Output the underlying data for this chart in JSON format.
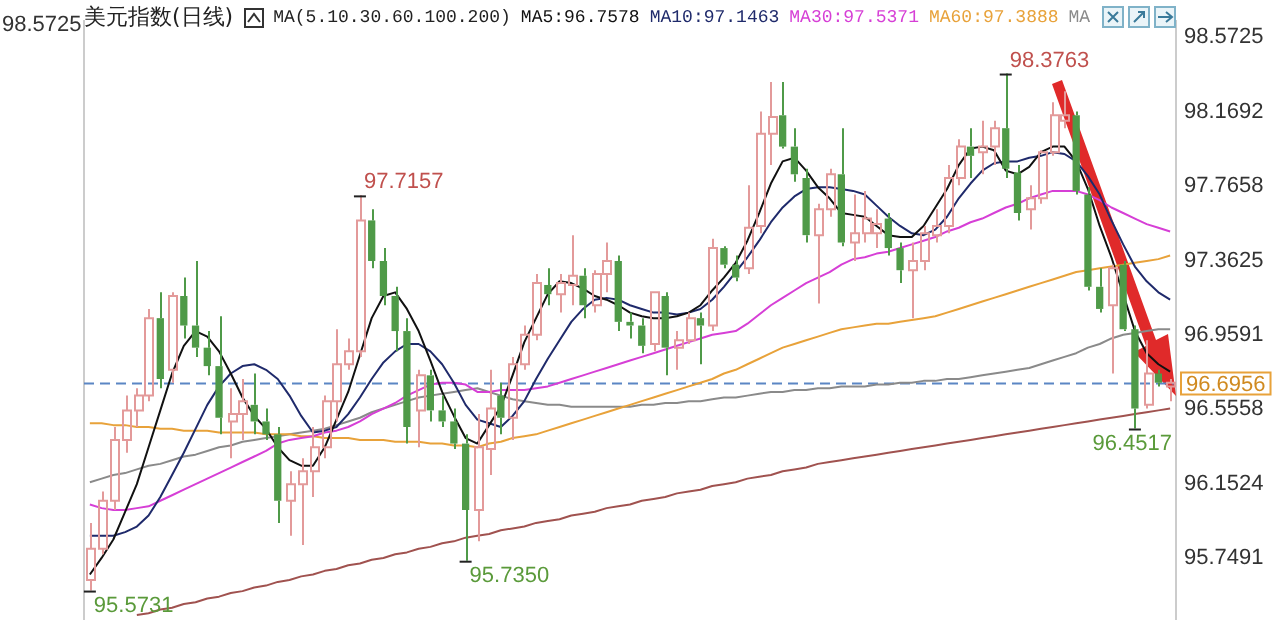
{
  "chart_data": {
    "type": "candlestick",
    "title": "美元指数(日线)",
    "subtitle": "MA(5.10.30.60.100.200)",
    "categories": [
      null,
      null,
      null,
      null,
      null,
      null,
      null,
      null,
      null,
      null,
      null,
      null,
      null,
      null,
      null,
      null,
      null,
      null,
      null,
      null,
      null,
      null,
      null,
      null,
      null,
      null,
      null,
      null,
      null,
      null,
      null,
      null,
      null,
      null,
      null,
      null,
      null,
      null,
      null,
      null,
      null,
      null,
      null,
      null,
      null,
      null,
      null,
      null,
      null,
      null,
      null,
      null,
      null,
      null,
      null,
      null,
      null,
      null,
      null,
      null,
      null,
      null,
      null,
      null,
      null,
      null,
      null,
      null,
      null,
      null,
      null,
      null,
      null,
      null,
      null,
      null,
      null,
      null,
      null,
      null,
      null,
      null,
      null,
      null,
      null,
      null,
      null,
      null,
      null,
      null,
      null,
      null,
      null
    ],
    "ohlc": [
      [
        95.63,
        95.94,
        95.5731,
        95.8
      ],
      [
        95.8,
        96.11,
        95.77,
        96.06
      ],
      [
        96.06,
        96.46,
        96.01,
        96.39
      ],
      [
        96.39,
        96.63,
        96.32,
        96.55
      ],
      [
        96.55,
        96.67,
        96.46,
        96.63
      ],
      [
        96.63,
        97.1,
        96.6,
        97.05
      ],
      [
        97.05,
        97.19,
        96.67,
        96.72
      ],
      [
        96.77,
        97.19,
        96.7,
        97.17
      ],
      [
        97.17,
        97.27,
        96.94,
        97.01
      ],
      [
        97.01,
        97.36,
        96.84,
        96.89
      ],
      [
        96.89,
        96.98,
        96.74,
        96.79
      ],
      [
        96.79,
        97.06,
        96.42,
        96.51
      ],
      [
        96.49,
        96.67,
        96.29,
        96.53
      ],
      [
        96.53,
        96.72,
        96.39,
        96.6
      ],
      [
        96.58,
        96.75,
        96.42,
        96.49
      ],
      [
        96.49,
        96.56,
        96.39,
        96.42
      ],
      [
        96.42,
        96.46,
        95.94,
        96.06
      ],
      [
        96.06,
        96.22,
        95.87,
        96.15
      ],
      [
        96.15,
        96.29,
        95.82,
        96.22
      ],
      [
        96.22,
        96.46,
        96.08,
        96.35
      ],
      [
        96.35,
        96.63,
        96.29,
        96.6
      ],
      [
        96.6,
        96.99,
        96.49,
        96.8
      ],
      [
        96.8,
        96.94,
        96.77,
        96.87
      ],
      [
        96.87,
        97.7157,
        96.84,
        97.58
      ],
      [
        97.58,
        97.64,
        97.32,
        97.36
      ],
      [
        97.36,
        97.43,
        97.12,
        97.17
      ],
      [
        97.17,
        97.22,
        96.87,
        96.98
      ],
      [
        96.98,
        97.05,
        96.37,
        96.46
      ],
      [
        96.55,
        96.77,
        96.35,
        96.74
      ],
      [
        96.74,
        96.77,
        96.49,
        96.55
      ],
      [
        96.55,
        96.63,
        96.46,
        96.49
      ],
      [
        96.49,
        96.56,
        96.34,
        96.37
      ],
      [
        96.37,
        96.42,
        95.735,
        96.01
      ],
      [
        96.01,
        96.53,
        95.84,
        96.35
      ],
      [
        96.34,
        96.77,
        96.2,
        96.56
      ],
      [
        96.63,
        96.7,
        96.42,
        96.51
      ],
      [
        96.51,
        96.84,
        96.39,
        96.8
      ],
      [
        96.8,
        97.01,
        96.77,
        96.96
      ],
      [
        96.96,
        97.29,
        96.93,
        97.24
      ],
      [
        97.23,
        97.32,
        97.12,
        97.18
      ],
      [
        97.18,
        97.29,
        97.08,
        97.24
      ],
      [
        97.23,
        97.5,
        97.12,
        97.28
      ],
      [
        97.28,
        97.32,
        97.05,
        97.12
      ],
      [
        97.12,
        97.31,
        97.08,
        97.29
      ],
      [
        97.29,
        97.46,
        97.19,
        97.36
      ],
      [
        97.36,
        97.39,
        96.98,
        97.03
      ],
      [
        97.03,
        97.08,
        96.94,
        97.01
      ],
      [
        97.01,
        97.05,
        96.86,
        96.9
      ],
      [
        96.91,
        97.19,
        96.87,
        97.19
      ],
      [
        97.17,
        97.19,
        96.74,
        96.89
      ],
      [
        96.89,
        96.98,
        96.77,
        96.93
      ],
      [
        96.93,
        97.08,
        96.91,
        97.05
      ],
      [
        97.05,
        97.08,
        96.8,
        97.01
      ],
      [
        97.01,
        97.48,
        96.98,
        97.43
      ],
      [
        97.43,
        97.44,
        97.32,
        97.34
      ],
      [
        97.34,
        97.39,
        97.25,
        97.27
      ],
      [
        97.32,
        97.77,
        97.29,
        97.54
      ],
      [
        97.55,
        98.17,
        97.51,
        98.05
      ],
      [
        98.05,
        98.33,
        97.88,
        98.14
      ],
      [
        98.15,
        98.33,
        97.97,
        97.98
      ],
      [
        97.98,
        98.08,
        97.79,
        97.83
      ],
      [
        97.81,
        97.86,
        97.46,
        97.5
      ],
      [
        97.5,
        97.67,
        97.13,
        97.64
      ],
      [
        97.64,
        97.86,
        97.6,
        97.83
      ],
      [
        97.83,
        98.08,
        97.44,
        97.46
      ],
      [
        97.46,
        97.72,
        97.36,
        97.51
      ],
      [
        97.51,
        97.74,
        97.46,
        97.59
      ],
      [
        97.51,
        97.64,
        97.43,
        97.56
      ],
      [
        97.59,
        97.62,
        97.39,
        97.43
      ],
      [
        97.43,
        97.46,
        97.24,
        97.31
      ],
      [
        97.31,
        97.46,
        97.05,
        97.36
      ],
      [
        97.36,
        97.55,
        97.31,
        97.51
      ],
      [
        97.5,
        97.64,
        97.46,
        97.55
      ],
      [
        97.55,
        97.88,
        97.51,
        97.81
      ],
      [
        97.81,
        98.02,
        97.77,
        97.98
      ],
      [
        97.98,
        98.08,
        97.81,
        97.93
      ],
      [
        97.95,
        98.12,
        97.83,
        97.98
      ],
      [
        97.98,
        98.12,
        97.88,
        98.08
      ],
      [
        98.08,
        98.3763,
        97.81,
        97.86
      ],
      [
        97.84,
        97.88,
        97.58,
        97.62
      ],
      [
        97.64,
        97.77,
        97.53,
        97.7
      ],
      [
        97.7,
        97.96,
        97.67,
        97.95
      ],
      [
        97.95,
        98.22,
        97.93,
        98.15
      ],
      [
        98.12,
        98.28,
        98.08,
        98.15
      ],
      [
        98.15,
        98.17,
        97.72,
        97.74
      ],
      [
        97.72,
        97.76,
        97.2,
        97.22
      ],
      [
        97.22,
        97.32,
        97.08,
        97.1
      ],
      [
        97.12,
        97.34,
        96.75,
        97.32
      ],
      [
        97.34,
        97.36,
        96.98,
        96.99
      ],
      [
        96.99,
        97.01,
        96.4517,
        96.56
      ],
      [
        96.58,
        96.93,
        96.56,
        96.75
      ],
      [
        96.75,
        96.77,
        96.68,
        96.7
      ],
      [
        96.68,
        96.72,
        96.6,
        96.7
      ]
    ],
    "colors": [
      "#e39a9a",
      "#e39a9a",
      "#e39a9a",
      "#e39a9a",
      "#e39a9a",
      "#e39a9a",
      "#4f9a48",
      "#e39a9a",
      "#4f9a48",
      "#4f9a48",
      "#4f9a48",
      "#4f9a48",
      "#e39a9a",
      "#e39a9a",
      "#4f9a48",
      "#4f9a48",
      "#4f9a48",
      "#e39a9a",
      "#e39a9a",
      "#e39a9a",
      "#e39a9a",
      "#e39a9a",
      "#e39a9a",
      "#e39a9a",
      "#4f9a48",
      "#4f9a48",
      "#4f9a48",
      "#4f9a48",
      "#e39a9a",
      "#4f9a48",
      "#4f9a48",
      "#4f9a48",
      "#4f9a48",
      "#e39a9a",
      "#e39a9a",
      "#4f9a48",
      "#e39a9a",
      "#e39a9a",
      "#e39a9a",
      "#4f9a48",
      "#e39a9a",
      "#e39a9a",
      "#4f9a48",
      "#e39a9a",
      "#e39a9a",
      "#4f9a48",
      "#4f9a48",
      "#4f9a48",
      "#e39a9a",
      "#4f9a48",
      "#e39a9a",
      "#e39a9a",
      "#4f9a48",
      "#e39a9a",
      "#4f9a48",
      "#4f9a48",
      "#e39a9a",
      "#e39a9a",
      "#e39a9a",
      "#4f9a48",
      "#4f9a48",
      "#4f9a48",
      "#e39a9a",
      "#e39a9a",
      "#4f9a48",
      "#e39a9a",
      "#e39a9a",
      "#e39a9a",
      "#4f9a48",
      "#4f9a48",
      "#e39a9a",
      "#e39a9a",
      "#e39a9a",
      "#e39a9a",
      "#e39a9a",
      "#4f9a48",
      "#e39a9a",
      "#e39a9a",
      "#4f9a48",
      "#4f9a48",
      "#e39a9a",
      "#e39a9a",
      "#e39a9a",
      "#e39a9a",
      "#4f9a48",
      "#4f9a48",
      "#4f9a48",
      "#e39a9a",
      "#4f9a48",
      "#4f9a48",
      "#e39a9a",
      "#4f9a48",
      "#e39a9a"
    ],
    "series": [
      {
        "type": "line",
        "name": "MA5:96.7578",
        "color": "#111111",
        "values": [
          95.66,
          95.75,
          95.85,
          96.0,
          96.15,
          96.35,
          96.55,
          96.75,
          96.9,
          96.98,
          96.95,
          96.87,
          96.75,
          96.62,
          96.52,
          96.45,
          96.35,
          96.28,
          96.25,
          96.25,
          96.35,
          96.5,
          96.65,
          96.85,
          97.05,
          97.17,
          97.19,
          97.1,
          96.98,
          96.82,
          96.65,
          96.52,
          96.4,
          96.37,
          96.47,
          96.57,
          96.74,
          96.92,
          97.05,
          97.18,
          97.25,
          97.24,
          97.21,
          97.17,
          97.15,
          97.12,
          97.08,
          97.06,
          97.05,
          97.05,
          97.06,
          97.08,
          97.12,
          97.2,
          97.27,
          97.35,
          97.47,
          97.62,
          97.78,
          97.9,
          97.92,
          97.85,
          97.76,
          97.7,
          97.62,
          97.61,
          97.6,
          97.55,
          97.5,
          97.49,
          97.49,
          97.55,
          97.65,
          97.75,
          97.88,
          97.97,
          97.98,
          97.96,
          97.85,
          97.83,
          97.87,
          97.95,
          97.98,
          97.98,
          97.9,
          97.75,
          97.55,
          97.38,
          97.18,
          96.98,
          96.86,
          96.8,
          96.76
        ]
      },
      {
        "type": "line",
        "name": "MA10:97.1463",
        "color": "#1f2a6b",
        "values": [
          95.87,
          95.87,
          95.87,
          95.89,
          95.92,
          95.98,
          96.08,
          96.2,
          96.32,
          96.45,
          96.58,
          96.68,
          96.75,
          96.79,
          96.8,
          96.77,
          96.72,
          96.63,
          96.52,
          96.43,
          96.44,
          96.46,
          96.53,
          96.62,
          96.72,
          96.81,
          96.87,
          96.91,
          96.91,
          96.87,
          96.8,
          96.7,
          96.58,
          96.5,
          96.48,
          96.46,
          96.52,
          96.6,
          96.72,
          96.83,
          96.93,
          97.03,
          97.1,
          97.15,
          97.16,
          97.15,
          97.12,
          97.1,
          97.08,
          97.08,
          97.07,
          97.08,
          97.1,
          97.15,
          97.22,
          97.3,
          97.38,
          97.47,
          97.57,
          97.65,
          97.71,
          97.75,
          97.76,
          97.76,
          97.75,
          97.74,
          97.72,
          97.66,
          97.6,
          97.55,
          97.51,
          97.5,
          97.53,
          97.6,
          97.7,
          97.78,
          97.85,
          97.89,
          97.9,
          97.9,
          97.92,
          97.93,
          97.95,
          97.94,
          97.9,
          97.82,
          97.72,
          97.58,
          97.45,
          97.33,
          97.25,
          97.19,
          97.15
        ]
      },
      {
        "type": "line",
        "name": "MA30:97.5371",
        "color": "#d63fd6",
        "values": [
          96.04,
          96.02,
          96.01,
          96.01,
          96.02,
          96.03,
          96.06,
          96.09,
          96.12,
          96.15,
          96.18,
          96.21,
          96.24,
          96.27,
          96.3,
          96.33,
          96.37,
          96.39,
          96.4,
          96.41,
          96.43,
          96.44,
          96.46,
          96.49,
          96.53,
          96.56,
          96.59,
          96.63,
          96.66,
          96.69,
          96.7,
          96.7,
          96.69,
          96.65,
          96.65,
          96.66,
          96.66,
          96.66,
          96.67,
          96.68,
          96.7,
          96.72,
          96.74,
          96.76,
          96.78,
          96.8,
          96.82,
          96.84,
          96.86,
          96.88,
          96.9,
          96.92,
          96.94,
          96.96,
          96.97,
          96.98,
          97.02,
          97.07,
          97.12,
          97.16,
          97.2,
          97.24,
          97.27,
          97.3,
          97.34,
          97.37,
          97.38,
          97.4,
          97.41,
          97.43,
          97.45,
          97.47,
          97.49,
          97.52,
          97.54,
          97.57,
          97.59,
          97.62,
          97.65,
          97.67,
          97.7,
          97.72,
          97.74,
          97.74,
          97.74,
          97.72,
          97.69,
          97.65,
          97.62,
          97.59,
          97.56,
          97.54,
          97.52
        ]
      },
      {
        "type": "line",
        "name": "MA60:97.3888",
        "color": "#e8a23a",
        "values": [
          96.48,
          96.48,
          96.47,
          96.47,
          96.46,
          96.46,
          96.45,
          96.45,
          96.44,
          96.44,
          96.44,
          96.43,
          96.43,
          96.43,
          96.43,
          96.42,
          96.42,
          96.42,
          96.41,
          96.41,
          96.4,
          96.4,
          96.4,
          96.39,
          96.39,
          96.39,
          96.38,
          96.38,
          96.38,
          96.37,
          96.37,
          96.36,
          96.36,
          96.35,
          96.37,
          96.38,
          96.4,
          96.41,
          96.42,
          96.44,
          96.46,
          96.48,
          96.5,
          96.52,
          96.54,
          96.56,
          96.58,
          96.6,
          96.62,
          96.64,
          96.66,
          96.68,
          96.7,
          96.72,
          96.75,
          96.77,
          96.8,
          96.83,
          96.86,
          96.89,
          96.91,
          96.93,
          96.95,
          96.97,
          96.99,
          97.0,
          97.01,
          97.02,
          97.02,
          97.03,
          97.04,
          97.05,
          97.06,
          97.08,
          97.1,
          97.12,
          97.14,
          97.16,
          97.18,
          97.2,
          97.22,
          97.24,
          97.26,
          97.28,
          97.3,
          97.31,
          97.32,
          97.33,
          97.34,
          97.35,
          97.36,
          97.37,
          97.39
        ]
      },
      {
        "type": "line",
        "name": "MA",
        "color": "#8a8a8a",
        "values": [
          96.16,
          96.18,
          96.2,
          96.21,
          96.23,
          96.25,
          96.26,
          96.28,
          96.3,
          96.31,
          96.33,
          96.35,
          96.36,
          96.38,
          96.39,
          96.4,
          96.41,
          96.42,
          96.43,
          96.44,
          96.45,
          96.47,
          96.49,
          96.51,
          96.54,
          96.56,
          96.58,
          96.6,
          96.62,
          96.63,
          96.64,
          96.65,
          96.66,
          96.67,
          96.65,
          96.63,
          96.61,
          96.6,
          96.59,
          96.58,
          96.58,
          96.57,
          96.57,
          96.57,
          96.57,
          96.57,
          96.57,
          96.58,
          96.58,
          96.59,
          96.59,
          96.6,
          96.6,
          96.61,
          96.62,
          96.62,
          96.63,
          96.64,
          96.65,
          96.65,
          96.66,
          96.66,
          96.67,
          96.67,
          96.68,
          96.68,
          96.68,
          96.69,
          96.69,
          96.7,
          96.7,
          96.71,
          96.71,
          96.72,
          96.72,
          96.73,
          96.74,
          96.75,
          96.76,
          96.77,
          96.78,
          96.8,
          96.82,
          96.84,
          96.86,
          96.89,
          96.91,
          96.94,
          96.96,
          96.97,
          96.98,
          96.99,
          96.99
        ]
      },
      {
        "type": "line",
        "color": "#a0524f",
        "values": [
          null,
          null,
          null,
          null,
          95.44,
          95.45,
          95.47,
          95.48,
          95.5,
          95.51,
          95.53,
          95.54,
          95.56,
          95.57,
          95.59,
          95.6,
          95.62,
          95.63,
          95.65,
          95.66,
          95.68,
          95.69,
          95.71,
          95.72,
          95.74,
          95.75,
          95.77,
          95.78,
          95.8,
          95.81,
          95.83,
          95.84,
          95.86,
          95.87,
          95.88,
          95.9,
          95.91,
          95.92,
          95.94,
          95.95,
          95.96,
          95.98,
          95.99,
          96.0,
          96.02,
          96.03,
          96.04,
          96.06,
          96.07,
          96.08,
          96.1,
          96.11,
          96.12,
          96.14,
          96.15,
          96.16,
          96.18,
          96.19,
          96.2,
          96.22,
          96.23,
          96.24,
          96.26,
          96.27,
          96.28,
          96.29,
          96.3,
          96.31,
          96.32,
          96.33,
          96.34,
          96.35,
          96.36,
          96.37,
          96.38,
          96.39,
          96.4,
          96.41,
          96.42,
          96.43,
          96.44,
          96.45,
          96.46,
          96.47,
          96.48,
          96.49,
          96.5,
          96.51,
          96.52,
          96.53,
          96.54,
          96.55,
          96.56
        ]
      }
    ],
    "ylim": [
      95.42,
      98.66
    ],
    "yticks": [
      98.5725,
      98.1692,
      97.7658,
      97.3625,
      96.9591,
      96.5558,
      96.1524,
      95.7491
    ],
    "ref_lines": [
      {
        "axis": "y",
        "value": 96.6956,
        "label": "96.6956",
        "color": "#5b86c4",
        "line_style": "dashed"
      }
    ],
    "annotations": [
      "95.5731",
      "97.7157",
      "95.7350",
      "98.3763",
      "96.4517",
      "98.5725"
    ],
    "legend": "top right",
    "grid": false,
    "marker": "none",
    "line_style": "solid",
    "tick_labels": "y"
  }
}
